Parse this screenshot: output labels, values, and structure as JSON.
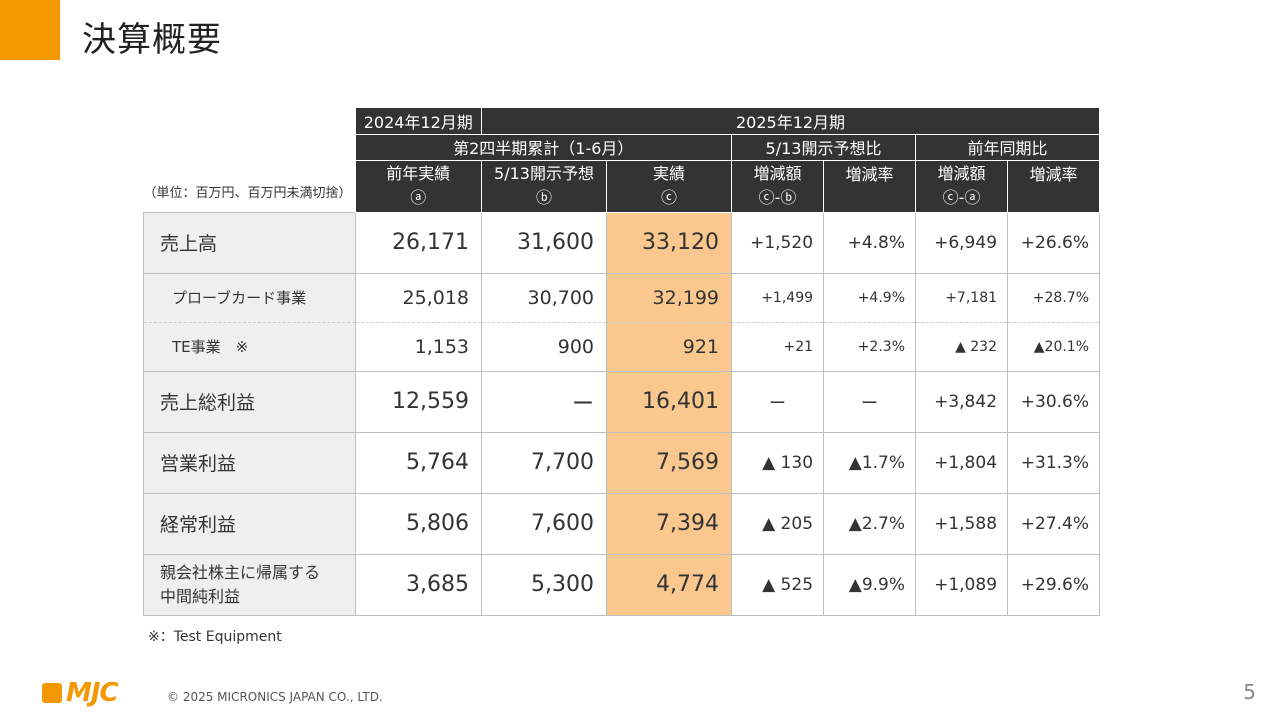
{
  "title": "決算概要",
  "unit_note": "（単位：百万円、百万円未満切捨）",
  "header": {
    "prev_period": "2024年12月期",
    "curr_period": "2025年12月期",
    "cumulative": "第2四半期累計（1-6月）",
    "vs_forecast": "5/13開示予想比",
    "vs_prev_year": "前年同期比",
    "col_prev_actual": "前年実績",
    "col_prev_actual_sym": "ⓐ",
    "col_forecast": "5/13開示予想",
    "col_forecast_sym": "ⓑ",
    "col_actual": "実績",
    "col_actual_sym": "ⓒ",
    "col_diff_f": "増減額",
    "col_diff_f_sym": "ⓒ-ⓑ",
    "col_rate_f": "増減率",
    "col_diff_p": "増減額",
    "col_diff_p_sym": "ⓒ-ⓐ",
    "col_rate_p": "増減率"
  },
  "rows": [
    {
      "label": "売上高",
      "prev": "26,171",
      "forecast": "31,600",
      "actual": "33,120",
      "diff_f": "+1,520",
      "rate_f": "+4.8%",
      "diff_p": "+6,949",
      "rate_p": "+26.6%"
    },
    {
      "label": "プローブカード事業",
      "prev": "25,018",
      "forecast": "30,700",
      "actual": "32,199",
      "diff_f": "+1,499",
      "rate_f": "+4.9%",
      "diff_p": "+7,181",
      "rate_p": "+28.7%"
    },
    {
      "label": "TE事業　※",
      "prev": "1,153",
      "forecast": "900",
      "actual": "921",
      "diff_f": "+21",
      "rate_f": "+2.3%",
      "diff_p": "▲ 232",
      "rate_p": "▲20.1%"
    },
    {
      "label": "売上総利益",
      "prev": "12,559",
      "forecast": "ー",
      "actual": "16,401",
      "diff_f": "ー",
      "rate_f": "ー",
      "diff_p": "+3,842",
      "rate_p": "+30.6%"
    },
    {
      "label": "営業利益",
      "prev": "5,764",
      "forecast": "7,700",
      "actual": "7,569",
      "diff_f": "▲ 130",
      "rate_f": "▲1.7%",
      "diff_p": "+1,804",
      "rate_p": "+31.3%"
    },
    {
      "label": "経常利益",
      "prev": "5,806",
      "forecast": "7,600",
      "actual": "7,394",
      "diff_f": "▲ 205",
      "rate_f": "▲2.7%",
      "diff_p": "+1,588",
      "rate_p": "+27.4%"
    },
    {
      "label_line1": "親会社株主に帰属する",
      "label_line2": "中間純利益",
      "prev": "3,685",
      "forecast": "5,300",
      "actual": "4,774",
      "diff_f": "▲ 525",
      "rate_f": "▲9.9%",
      "diff_p": "+1,089",
      "rate_p": "+29.6%"
    }
  ],
  "footnote": "※：Test Equipment",
  "logo": "MJC",
  "copyright": "© 2025 MICRONICS JAPAN CO., LTD.",
  "page_number": "5",
  "colors": {
    "accent": "#f39800",
    "header_bg": "#333333",
    "actual_col": "#fac78f",
    "label_bg": "#efefef"
  }
}
